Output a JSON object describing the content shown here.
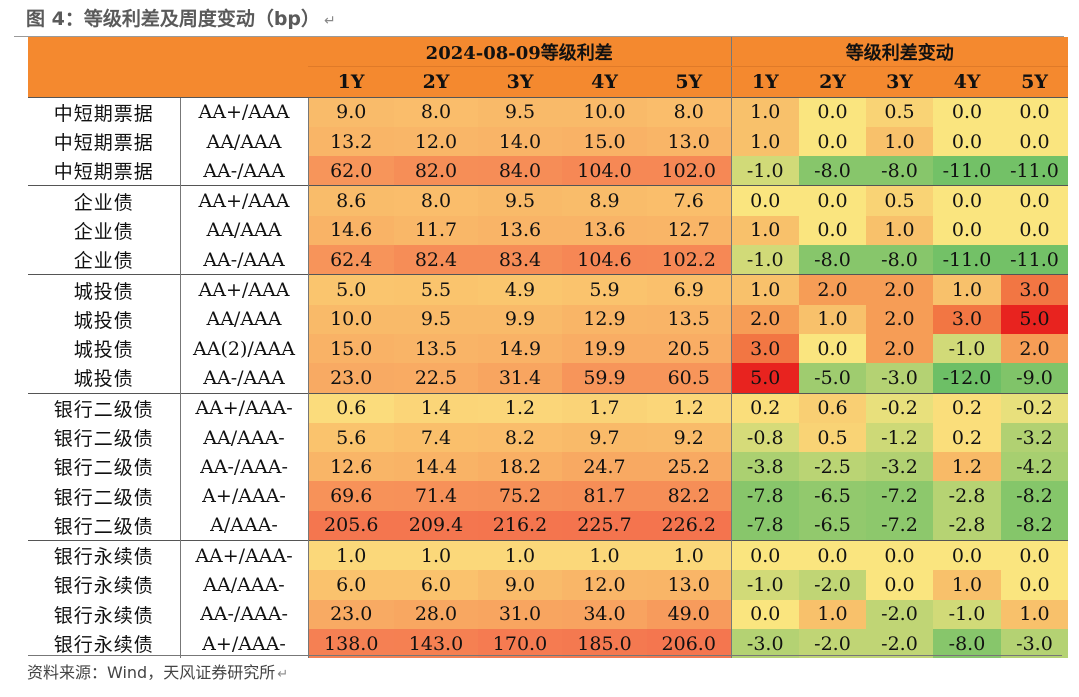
{
  "title": "图 4：等级利差及周度变动（bp）",
  "para_mark": "↵",
  "header": {
    "group_spread": "2024-08-09等级利差",
    "group_change": "等级利差变动",
    "tenors": [
      "1Y",
      "2Y",
      "3Y",
      "4Y",
      "5Y"
    ]
  },
  "rows": [
    {
      "type": "中短期票据",
      "grade": "AA+/AAA",
      "spread": [
        "9.0",
        "8.0",
        "9.5",
        "10.0",
        "8.0"
      ],
      "change": [
        "1.0",
        "0.0",
        "0.5",
        "0.0",
        "0.0"
      ]
    },
    {
      "type": "中短期票据",
      "grade": "AA/AAA",
      "spread": [
        "13.2",
        "12.0",
        "14.0",
        "15.0",
        "13.0"
      ],
      "change": [
        "1.0",
        "0.0",
        "1.0",
        "0.0",
        "0.0"
      ]
    },
    {
      "type": "中短期票据",
      "grade": "AA-/AAA",
      "spread": [
        "62.0",
        "82.0",
        "84.0",
        "104.0",
        "102.0"
      ],
      "change": [
        "-1.0",
        "-8.0",
        "-8.0",
        "-11.0",
        "-11.0"
      ]
    },
    {
      "type": "企业债",
      "grade": "AA+/AAA",
      "spread": [
        "8.6",
        "8.0",
        "9.5",
        "8.9",
        "7.6"
      ],
      "change": [
        "0.0",
        "0.0",
        "0.5",
        "0.0",
        "0.0"
      ]
    },
    {
      "type": "企业债",
      "grade": "AA/AAA",
      "spread": [
        "14.6",
        "11.7",
        "13.6",
        "13.6",
        "12.7"
      ],
      "change": [
        "1.0",
        "0.0",
        "1.0",
        "0.0",
        "0.0"
      ]
    },
    {
      "type": "企业债",
      "grade": "AA-/AAA",
      "spread": [
        "62.4",
        "82.4",
        "83.4",
        "104.6",
        "102.2"
      ],
      "change": [
        "-1.0",
        "-8.0",
        "-8.0",
        "-11.0",
        "-11.0"
      ]
    },
    {
      "type": "城投债",
      "grade": "AA+/AAA",
      "spread": [
        "5.0",
        "5.5",
        "4.9",
        "5.9",
        "6.9"
      ],
      "change": [
        "1.0",
        "2.0",
        "2.0",
        "1.0",
        "3.0"
      ]
    },
    {
      "type": "城投债",
      "grade": "AA/AAA",
      "spread": [
        "10.0",
        "9.5",
        "9.9",
        "12.9",
        "13.5"
      ],
      "change": [
        "2.0",
        "1.0",
        "2.0",
        "3.0",
        "5.0"
      ]
    },
    {
      "type": "城投债",
      "grade": "AA(2)/AAA",
      "spread": [
        "15.0",
        "13.5",
        "14.9",
        "19.9",
        "20.5"
      ],
      "change": [
        "3.0",
        "0.0",
        "2.0",
        "-1.0",
        "2.0"
      ]
    },
    {
      "type": "城投债",
      "grade": "AA-/AAA",
      "spread": [
        "23.0",
        "22.5",
        "31.4",
        "59.9",
        "60.5"
      ],
      "change": [
        "5.0",
        "-5.0",
        "-3.0",
        "-12.0",
        "-9.0"
      ]
    },
    {
      "type": "银行二级债",
      "grade": "AA+/AAA-",
      "spread": [
        "0.6",
        "1.4",
        "1.2",
        "1.7",
        "1.2"
      ],
      "change": [
        "0.2",
        "0.6",
        "-0.2",
        "0.2",
        "-0.2"
      ]
    },
    {
      "type": "银行二级债",
      "grade": "AA/AAA-",
      "spread": [
        "5.6",
        "7.4",
        "8.2",
        "9.7",
        "9.2"
      ],
      "change": [
        "-0.8",
        "0.5",
        "-1.2",
        "0.2",
        "-3.2"
      ]
    },
    {
      "type": "银行二级债",
      "grade": "AA-/AAA-",
      "spread": [
        "12.6",
        "14.4",
        "18.2",
        "24.7",
        "25.2"
      ],
      "change": [
        "-3.8",
        "-2.5",
        "-3.2",
        "1.2",
        "-4.2"
      ]
    },
    {
      "type": "银行二级债",
      "grade": "A+/AAA-",
      "spread": [
        "69.6",
        "71.4",
        "75.2",
        "81.7",
        "82.2"
      ],
      "change": [
        "-7.8",
        "-6.5",
        "-7.2",
        "-2.8",
        "-8.2"
      ]
    },
    {
      "type": "银行二级债",
      "grade": "A/AAA-",
      "spread": [
        "205.6",
        "209.4",
        "216.2",
        "225.7",
        "226.2"
      ],
      "change": [
        "-7.8",
        "-6.5",
        "-7.2",
        "-2.8",
        "-8.2"
      ]
    },
    {
      "type": "银行永续债",
      "grade": "AA+/AAA-",
      "spread": [
        "1.0",
        "1.0",
        "1.0",
        "1.0",
        "1.0"
      ],
      "change": [
        "0.0",
        "0.0",
        "0.0",
        "0.0",
        "0.0"
      ]
    },
    {
      "type": "银行永续债",
      "grade": "AA/AAA-",
      "spread": [
        "6.0",
        "6.0",
        "9.0",
        "12.0",
        "13.0"
      ],
      "change": [
        "-1.0",
        "-2.0",
        "0.0",
        "1.0",
        "0.0"
      ]
    },
    {
      "type": "银行永续债",
      "grade": "AA-/AAA-",
      "spread": [
        "23.0",
        "28.0",
        "31.0",
        "34.0",
        "49.0"
      ],
      "change": [
        "0.0",
        "1.0",
        "-2.0",
        "-1.0",
        "1.0"
      ]
    },
    {
      "type": "银行永续债",
      "grade": "A+/AAA-",
      "spread": [
        "138.0",
        "143.0",
        "170.0",
        "185.0",
        "206.0"
      ],
      "change": [
        "-3.0",
        "-2.0",
        "-2.0",
        "-8.0",
        "-3.0"
      ]
    }
  ],
  "colors": {
    "header": "#F4892F",
    "spread_scale": [
      "#FBE481",
      "#FAC56E",
      "#F8A25F",
      "#F4744E"
    ],
    "change_scale": {
      "neg_max": "#6DBF66",
      "neutral": "#FAE57F",
      "pos_mid": "#F58B4C",
      "pos_max": "#E8231F"
    }
  },
  "source": "资料来源：Wind，天风证券研究所"
}
